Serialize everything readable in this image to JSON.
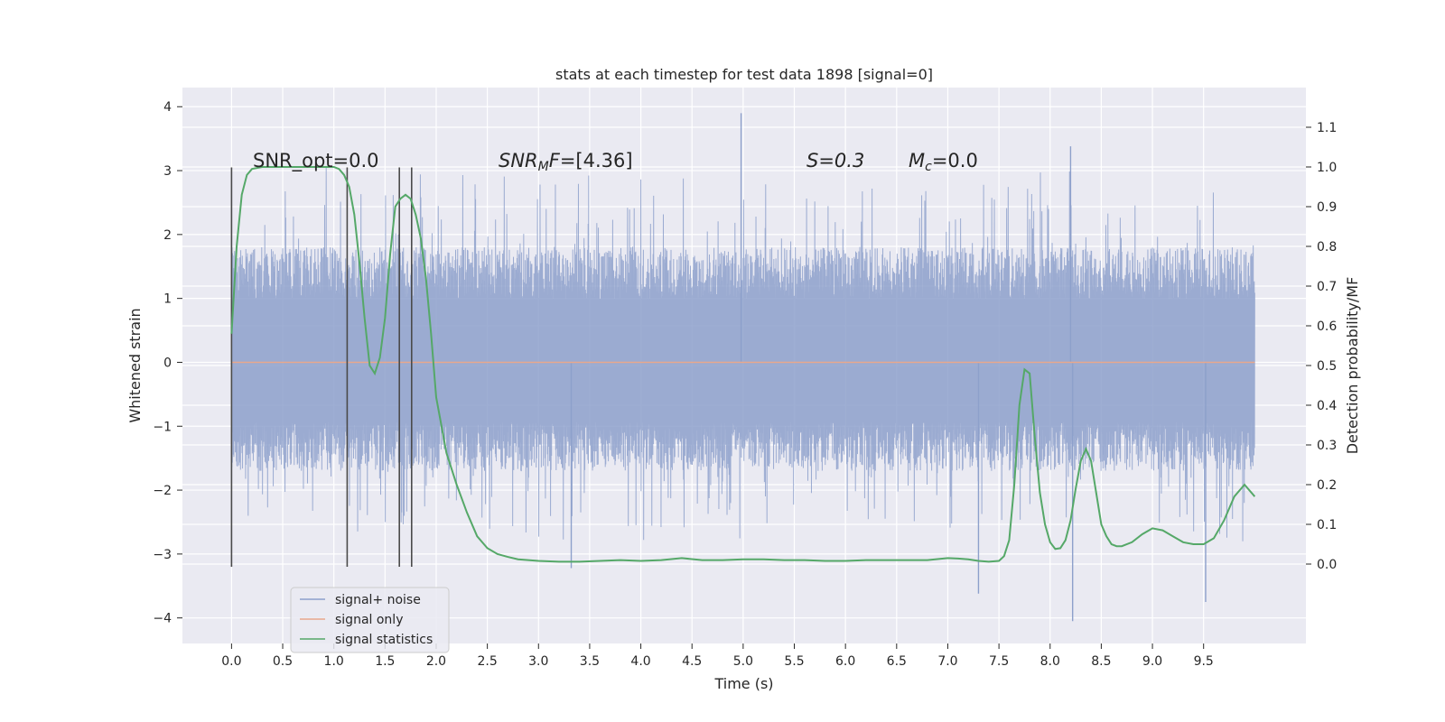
{
  "chart_data": {
    "type": "line",
    "title": "stats at each timestep for test data 1898 [signal=0]",
    "xlabel": "Time (s)",
    "ylabel": "Whitened strain",
    "y2label": "Detection probability/MF",
    "xlim": [
      -0.48,
      10.5
    ],
    "ylim": [
      -4.4,
      4.3
    ],
    "y2lim": [
      -0.2,
      1.2
    ],
    "xticks": [
      0.0,
      0.5,
      1.0,
      1.5,
      2.0,
      2.5,
      3.0,
      3.5,
      4.0,
      4.5,
      5.0,
      5.5,
      6.0,
      6.5,
      7.0,
      7.5,
      8.0,
      8.5,
      9.0,
      9.5
    ],
    "xtick_labels": [
      "0.0",
      "0.5",
      "1.0",
      "1.5",
      "2.0",
      "2.5",
      "3.0",
      "3.5",
      "4.0",
      "4.5",
      "5.0",
      "5.5",
      "6.0",
      "6.5",
      "7.0",
      "7.5",
      "8.0",
      "8.5",
      "9.0",
      "9.5"
    ],
    "yticks": [
      4,
      3,
      2,
      1,
      0,
      -1,
      -2,
      -3,
      -4
    ],
    "ytick_labels": [
      "4",
      "3",
      "2",
      "1",
      "0",
      "−1",
      "−2",
      "−3",
      "−4"
    ],
    "y2ticks": [
      1.1,
      1.0,
      0.9,
      0.8,
      0.7,
      0.6,
      0.5,
      0.4,
      0.3,
      0.2,
      0.1,
      0.0
    ],
    "y2tick_labels": [
      "1.1",
      "1.0",
      "0.9",
      "0.8",
      "0.7",
      "0.6",
      "0.5",
      "0.4",
      "0.3",
      "0.2",
      "0.1",
      "0.0"
    ],
    "grid": true,
    "legend_position": "lower-left",
    "legend": [
      {
        "label": "signal+ noise",
        "color": "#8da0cb"
      },
      {
        "label": "signal only",
        "color": "#e8a88c"
      },
      {
        "label": "signal statistics",
        "color": "#55a868"
      }
    ],
    "annotations": {
      "snr_opt": "SNR_opt=0.0",
      "snr_mf": "=[4.36]",
      "snr_mf_base": "SNR",
      "snr_mf_sub": "M",
      "snr_mf_f": "F",
      "s_stat": "S=0.3",
      "mc_base": "M",
      "mc_sub": "c",
      "mc_rest": "=0.0"
    },
    "vertical_lines_x": [
      0.0,
      1.13,
      1.64,
      1.76
    ],
    "vertical_lines_y": [
      -3.2,
      3.05
    ],
    "noise": {
      "duration": 10.0,
      "envelope_high": 1.8,
      "envelope_low": -1.7,
      "max_peak": 3.9,
      "min_peak": -4.05
    },
    "signal_only": {
      "x": [
        0.0,
        10.0
      ],
      "y": [
        0.0,
        0.0
      ]
    },
    "statistics": {
      "x": [
        0.0,
        0.05,
        0.1,
        0.15,
        0.2,
        0.3,
        0.5,
        0.7,
        0.9,
        1.0,
        1.05,
        1.1,
        1.15,
        1.2,
        1.25,
        1.3,
        1.35,
        1.4,
        1.45,
        1.5,
        1.55,
        1.6,
        1.65,
        1.7,
        1.75,
        1.8,
        1.85,
        1.9,
        1.95,
        2.0,
        2.1,
        2.2,
        2.3,
        2.4,
        2.5,
        2.6,
        2.7,
        2.8,
        3.0,
        3.2,
        3.4,
        3.6,
        3.8,
        4.0,
        4.2,
        4.4,
        4.6,
        4.8,
        5.0,
        5.2,
        5.4,
        5.6,
        5.8,
        6.0,
        6.2,
        6.4,
        6.6,
        6.8,
        7.0,
        7.1,
        7.2,
        7.3,
        7.4,
        7.5,
        7.55,
        7.6,
        7.65,
        7.7,
        7.75,
        7.8,
        7.85,
        7.9,
        7.95,
        8.0,
        8.05,
        8.1,
        8.15,
        8.2,
        8.25,
        8.3,
        8.35,
        8.4,
        8.45,
        8.5,
        8.55,
        8.6,
        8.65,
        8.7,
        8.8,
        8.9,
        9.0,
        9.1,
        9.2,
        9.3,
        9.4,
        9.5,
        9.6,
        9.7,
        9.8,
        9.9,
        10.0
      ],
      "y": [
        0.58,
        0.8,
        0.93,
        0.98,
        0.995,
        1.0,
        1.0,
        1.0,
        1.0,
        1.0,
        0.995,
        0.98,
        0.95,
        0.88,
        0.76,
        0.62,
        0.5,
        0.48,
        0.52,
        0.62,
        0.78,
        0.9,
        0.92,
        0.93,
        0.92,
        0.88,
        0.82,
        0.72,
        0.58,
        0.42,
        0.28,
        0.2,
        0.13,
        0.07,
        0.04,
        0.025,
        0.018,
        0.012,
        0.008,
        0.006,
        0.006,
        0.008,
        0.01,
        0.008,
        0.01,
        0.015,
        0.01,
        0.01,
        0.012,
        0.012,
        0.01,
        0.01,
        0.008,
        0.008,
        0.01,
        0.01,
        0.01,
        0.01,
        0.015,
        0.014,
        0.012,
        0.008,
        0.006,
        0.008,
        0.02,
        0.06,
        0.2,
        0.4,
        0.49,
        0.48,
        0.32,
        0.18,
        0.1,
        0.055,
        0.038,
        0.04,
        0.06,
        0.11,
        0.19,
        0.26,
        0.29,
        0.26,
        0.18,
        0.1,
        0.07,
        0.05,
        0.045,
        0.045,
        0.055,
        0.075,
        0.09,
        0.085,
        0.07,
        0.055,
        0.05,
        0.05,
        0.065,
        0.11,
        0.17,
        0.2,
        0.17
      ]
    }
  }
}
